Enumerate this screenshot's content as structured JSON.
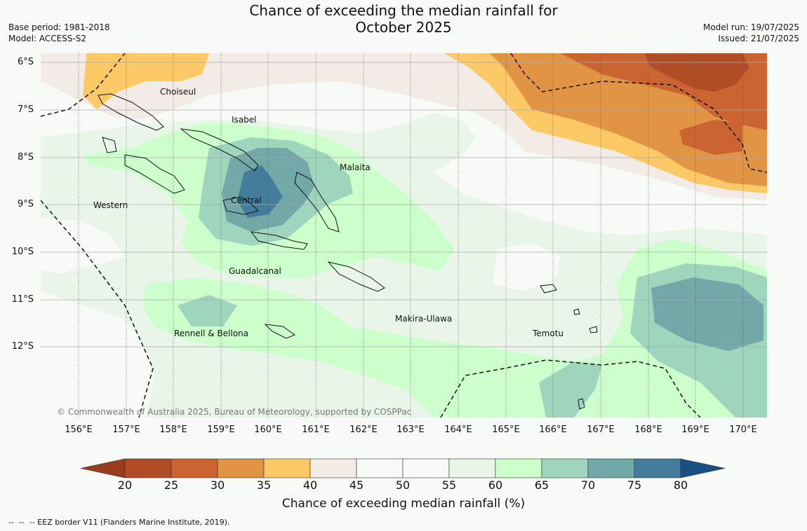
{
  "title": {
    "line1": "Chance of exceeding the median rainfall for",
    "line2": "October 2025"
  },
  "meta": {
    "base_period": "Base period: 1981-2018",
    "model": "Model: ACCESS-S2",
    "model_run": "Model run: 19/07/2025",
    "issued": "Issued: 21/07/2025"
  },
  "copyright": "© Commonwealth of Australia 2025, Bureau of Meteorology, supported by COSPPac",
  "axes": {
    "latitudes": [
      "6°S",
      "7°S",
      "8°S",
      "9°S",
      "10°S",
      "11°S",
      "12°S"
    ],
    "longitudes": [
      "156°E",
      "157°E",
      "158°E",
      "159°E",
      "160°E",
      "161°E",
      "162°E",
      "163°E",
      "164°E",
      "165°E",
      "166°E",
      "167°E",
      "168°E",
      "169°E",
      "170°E"
    ]
  },
  "provinces": [
    {
      "name": "Choiseul"
    },
    {
      "name": "Isabel"
    },
    {
      "name": "Malaita"
    },
    {
      "name": "Western"
    },
    {
      "name": "Central"
    },
    {
      "name": "Guadalcanal"
    },
    {
      "name": "Makira-Ulawa"
    },
    {
      "name": "Rennell & Bellona"
    },
    {
      "name": "Temotu"
    }
  ],
  "colorbar": {
    "title": "Chance of exceeding median rainfall (%)",
    "ticks": [
      "20",
      "25",
      "30",
      "35",
      "40",
      "45",
      "50",
      "55",
      "60",
      "65",
      "70",
      "75",
      "80"
    ],
    "colors": {
      "under": "#9a3b1e",
      "c20_25": "#b04d27",
      "c25_30": "#cc6431",
      "c30_35": "#e19444",
      "c35_40": "#fdc966",
      "c40_45": "#f3ece6",
      "c45_50": "#f8faf8",
      "c50_55": "#f8faf8",
      "c55_60": "#eaf5ea",
      "c60_65": "#ccffcc",
      "c65_70": "#9fd4bd",
      "c70_75": "#72a8a8",
      "c75_80": "#447c9b",
      "over": "#1a4f84"
    }
  },
  "legend_note": "--  --  -- EEZ border V11 (Flanders Marine Institute, 2019)."
}
